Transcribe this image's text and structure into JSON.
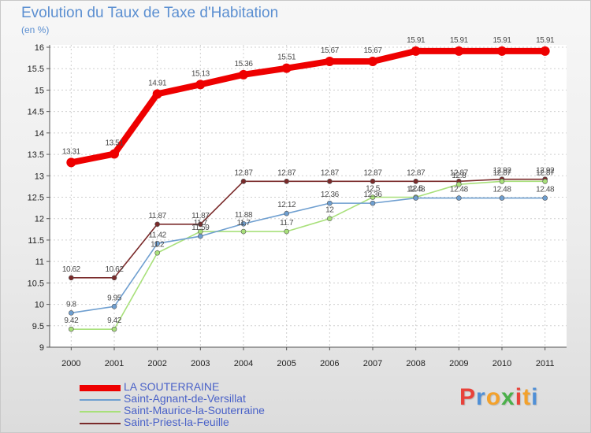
{
  "chart_data": {
    "type": "line",
    "title": "Evolution du Taux de Taxe d'Habitation",
    "unit_label": "(en %)",
    "xlabel": "",
    "ylabel": "",
    "ylim": [
      9,
      16
    ],
    "y_ticks": [
      "9",
      "9.5",
      "10",
      "10.5",
      "11",
      "11.5",
      "12",
      "12.5",
      "13",
      "13.5",
      "14",
      "14.5",
      "15",
      "15.5",
      "16"
    ],
    "categories": [
      "2000",
      "2001",
      "2002",
      "2003",
      "2004",
      "2005",
      "2006",
      "2007",
      "2008",
      "2009",
      "2010",
      "2011"
    ],
    "grid": true,
    "legend_position": "bottom-left",
    "series": [
      {
        "name": "LA SOUTERRAINE",
        "color": "#ee0000",
        "values": [
          13.31,
          13.51,
          14.91,
          15.13,
          15.36,
          15.51,
          15.67,
          15.67,
          15.91,
          15.91,
          15.91,
          15.91
        ],
        "labels": [
          "13.31",
          "13.51",
          "14.91",
          "15.13",
          "15.36",
          "15.51",
          "15.67",
          "15.67",
          "15.91",
          "15.91",
          "15.91",
          "15.91"
        ]
      },
      {
        "name": "Saint-Agnant-de-Versillat",
        "color": "#6f9fd0",
        "values": [
          9.8,
          9.95,
          11.42,
          11.59,
          11.88,
          12.12,
          12.36,
          12.36,
          12.48,
          12.48,
          12.48,
          12.48
        ],
        "labels": [
          "9.8",
          "9.95",
          "11.42",
          "11.59",
          "11.88",
          "12.12",
          "12.36",
          "12.36",
          "12.48",
          "12.48",
          "12.48",
          "12.48"
        ]
      },
      {
        "name": "Saint-Maurice-la-Souterraine",
        "color": "#a8e07a",
        "values": [
          9.42,
          9.42,
          11.2,
          11.7,
          11.7,
          11.7,
          12,
          12.5,
          12.5,
          12.8,
          12.87,
          12.87
        ],
        "labels": [
          "9.42",
          "9.42",
          "11.2",
          "11.7",
          "11.7",
          "11.7",
          "12",
          "12.5",
          "12.5",
          "12.8",
          "12.87",
          "12.87"
        ]
      },
      {
        "name": "Saint-Priest-la-Feuille",
        "color": "#7a2a2a",
        "values": [
          10.62,
          10.62,
          11.87,
          11.87,
          12.87,
          12.87,
          12.87,
          12.87,
          12.87,
          12.87,
          12.92,
          12.92
        ],
        "labels": [
          "10.62",
          "10.62",
          "11.87",
          "11.87",
          "12.87",
          "12.87",
          "12.87",
          "12.87",
          "12.87",
          "12.87",
          "12.92",
          "12.92"
        ]
      }
    ]
  },
  "watermark": {
    "letters": [
      "P",
      "r",
      "o",
      "x",
      "i",
      "t",
      "i"
    ],
    "colors": [
      "#e8423a",
      "#4f8fd6",
      "#f3a12b",
      "#4bb04a",
      "#e8423a",
      "#f3a12b",
      "#4f8fd6"
    ]
  }
}
